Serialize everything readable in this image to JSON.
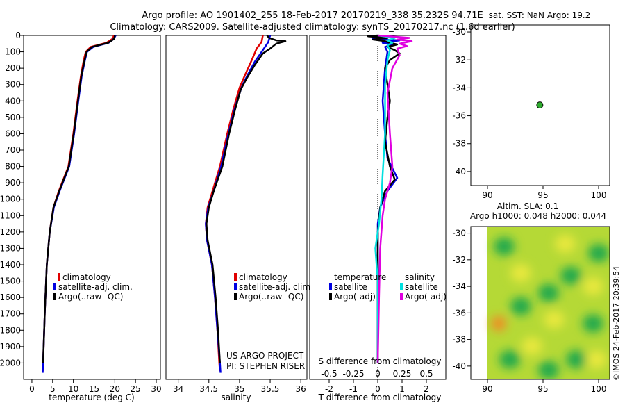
{
  "header": {
    "line1": "Argo profile: AO 1901402_255 18-Feb-2017 20170219_338 35.232S 94.71E",
    "line2": "Climatology: CARS2009. Satellite-adjusted climatology: synTS_20170217.nc (1.6d earlier)"
  },
  "colors": {
    "climatology": "#e00000",
    "satellite": "#0000e0",
    "argo": "#000000",
    "satellite_s": "#00e0e0",
    "argo_s": "#e000e0"
  },
  "chart_data": [
    {
      "id": "temperature",
      "type": "line",
      "xlabel": "temperature (deg C)",
      "xlim": [
        -2,
        31
      ],
      "ylim": [
        0,
        2100
      ],
      "xticks": [
        0,
        5,
        10,
        15,
        20,
        25,
        30
      ],
      "yticks": [
        0,
        100,
        200,
        300,
        400,
        500,
        600,
        700,
        800,
        900,
        1000,
        1100,
        1200,
        1300,
        1400,
        1500,
        1600,
        1700,
        1800,
        1900,
        2000
      ],
      "legend": [
        "climatology",
        "satellite-adj. clim.",
        "Argo(..raw -QC)"
      ],
      "series": [
        {
          "name": "climatology",
          "color_key": "climatology",
          "points": [
            [
              19.8,
              0
            ],
            [
              19.5,
              20
            ],
            [
              18.0,
              45
            ],
            [
              14.2,
              70
            ],
            [
              13.0,
              100
            ],
            [
              12.5,
              150
            ],
            [
              11.8,
              250
            ],
            [
              11.0,
              400
            ],
            [
              10.0,
              600
            ],
            [
              8.8,
              800
            ],
            [
              6.5,
              950
            ],
            [
              5.2,
              1050
            ],
            [
              4.3,
              1200
            ],
            [
              3.6,
              1400
            ],
            [
              3.1,
              1700
            ],
            [
              2.7,
              2000
            ],
            [
              2.6,
              2050
            ]
          ]
        },
        {
          "name": "satellite-adj. clim.",
          "color_key": "satellite",
          "points": [
            [
              20.2,
              0
            ],
            [
              19.8,
              20
            ],
            [
              18.5,
              45
            ],
            [
              14.8,
              70
            ],
            [
              13.3,
              100
            ],
            [
              12.8,
              150
            ],
            [
              12.0,
              250
            ],
            [
              11.2,
              400
            ],
            [
              10.2,
              600
            ],
            [
              9.0,
              800
            ],
            [
              6.7,
              950
            ],
            [
              5.3,
              1050
            ],
            [
              4.3,
              1200
            ],
            [
              3.6,
              1400
            ],
            [
              3.1,
              1700
            ],
            [
              2.7,
              2000
            ],
            [
              2.6,
              2060
            ]
          ]
        },
        {
          "name": "Argo(..raw -QC)",
          "color_key": "argo",
          "points": [
            [
              20.0,
              0
            ],
            [
              19.9,
              20
            ],
            [
              18.4,
              45
            ],
            [
              14.5,
              70
            ],
            [
              13.2,
              100
            ],
            [
              12.7,
              150
            ],
            [
              11.9,
              250
            ],
            [
              11.1,
              400
            ],
            [
              10.1,
              600
            ],
            [
              8.9,
              800
            ],
            [
              6.6,
              950
            ],
            [
              5.2,
              1050
            ],
            [
              4.3,
              1200
            ],
            [
              3.6,
              1400
            ],
            [
              3.1,
              1700
            ],
            [
              2.7,
              2000
            ]
          ]
        }
      ]
    },
    {
      "id": "salinity",
      "type": "line",
      "xlabel": "salinity",
      "xlim": [
        33.8,
        36.1
      ],
      "ylim": [
        0,
        2100
      ],
      "xticks": [
        34,
        34.5,
        35,
        35.5,
        36
      ],
      "xtick_labels": [
        "34",
        "34.5",
        "35",
        "35.5",
        "36"
      ],
      "legend": [
        "climatology",
        "satellite-adj. clim.",
        "Argo(..raw -QC)"
      ],
      "credit": [
        "US ARGO PROJECT",
        "PI: STEPHEN RISER"
      ],
      "series": [
        {
          "name": "climatology",
          "color_key": "climatology",
          "points": [
            [
              35.38,
              0
            ],
            [
              35.36,
              40
            ],
            [
              35.28,
              80
            ],
            [
              35.2,
              150
            ],
            [
              35.08,
              250
            ],
            [
              35.0,
              320
            ],
            [
              34.9,
              450
            ],
            [
              34.8,
              600
            ],
            [
              34.68,
              800
            ],
            [
              34.56,
              950
            ],
            [
              34.48,
              1050
            ],
            [
              34.45,
              1150
            ],
            [
              34.47,
              1250
            ],
            [
              34.55,
              1400
            ],
            [
              34.6,
              1600
            ],
            [
              34.64,
              1800
            ],
            [
              34.67,
              2000
            ],
            [
              34.68,
              2050
            ]
          ]
        },
        {
          "name": "satellite-adj. clim.",
          "color_key": "satellite",
          "points": [
            [
              35.5,
              0
            ],
            [
              35.47,
              40
            ],
            [
              35.38,
              90
            ],
            [
              35.25,
              160
            ],
            [
              35.12,
              250
            ],
            [
              35.03,
              320
            ],
            [
              34.92,
              450
            ],
            [
              34.82,
              600
            ],
            [
              34.7,
              800
            ],
            [
              34.58,
              950
            ],
            [
              34.49,
              1050
            ],
            [
              34.45,
              1150
            ],
            [
              34.47,
              1250
            ],
            [
              34.55,
              1400
            ],
            [
              34.6,
              1600
            ],
            [
              34.64,
              1800
            ],
            [
              34.68,
              2000
            ],
            [
              34.69,
              2060
            ]
          ]
        },
        {
          "name": "Argo(..raw -QC)",
          "color_key": "argo",
          "points": [
            [
              35.45,
              0
            ],
            [
              35.48,
              15
            ],
            [
              35.6,
              30
            ],
            [
              35.75,
              35
            ],
            [
              35.6,
              50
            ],
            [
              35.5,
              80
            ],
            [
              35.38,
              110
            ],
            [
              35.25,
              180
            ],
            [
              35.12,
              260
            ],
            [
              35.02,
              330
            ],
            [
              34.93,
              450
            ],
            [
              34.83,
              600
            ],
            [
              34.72,
              800
            ],
            [
              34.58,
              950
            ],
            [
              34.5,
              1050
            ],
            [
              34.46,
              1150
            ],
            [
              34.48,
              1250
            ],
            [
              34.56,
              1400
            ],
            [
              34.61,
              1600
            ],
            [
              34.65,
              1800
            ],
            [
              34.68,
              2000
            ]
          ]
        }
      ]
    },
    {
      "id": "difference",
      "type": "line",
      "xlabel": "T difference from climatology",
      "xlabel_top": "S difference from climatology",
      "xlim": [
        -2.8,
        2.8
      ],
      "ylim": [
        0,
        2100
      ],
      "xticks": [
        -2,
        -1,
        0,
        1,
        2
      ],
      "xtick_labels": [
        "-2",
        "-1",
        "0",
        "1",
        "2"
      ],
      "xticks_top": [
        -0.5,
        -0.25,
        0,
        0.25,
        0.5
      ],
      "xtick_top_labels": [
        "-0.5",
        "-0.25",
        "0",
        "0.25",
        "0.5"
      ],
      "legend_titles": [
        "temperature",
        "salinity"
      ],
      "legend": [
        "satellite",
        "Argo(-adj)",
        "satellite",
        "Argo(-adj)"
      ],
      "series": [
        {
          "name": "temperature satellite",
          "color_key": "satellite",
          "points": [
            [
              0.0,
              0
            ],
            [
              0.5,
              10
            ],
            [
              -0.2,
              20
            ],
            [
              0.9,
              30
            ],
            [
              0.2,
              45
            ],
            [
              0.6,
              55
            ],
            [
              0.3,
              70
            ],
            [
              0.4,
              100
            ],
            [
              0.3,
              200
            ],
            [
              0.2,
              400
            ],
            [
              0.3,
              600
            ],
            [
              0.4,
              750
            ],
            [
              0.8,
              870
            ],
            [
              0.4,
              950
            ],
            [
              0.1,
              1050
            ],
            [
              0.0,
              1150
            ],
            [
              0.0,
              1300
            ],
            [
              0.0,
              1600
            ],
            [
              0.0,
              2000
            ]
          ]
        },
        {
          "name": "temperature Argo(-adj)",
          "color_key": "argo",
          "points": [
            [
              0.0,
              0
            ],
            [
              -0.4,
              5
            ],
            [
              0.4,
              15
            ],
            [
              -0.2,
              25
            ],
            [
              0.3,
              35
            ],
            [
              0.5,
              45
            ],
            [
              0.8,
              55
            ],
            [
              0.4,
              70
            ],
            [
              0.7,
              90
            ],
            [
              0.9,
              110
            ],
            [
              0.5,
              150
            ],
            [
              0.3,
              200
            ],
            [
              0.4,
              300
            ],
            [
              0.5,
              400
            ],
            [
              0.4,
              500
            ],
            [
              0.3,
              650
            ],
            [
              0.5,
              800
            ],
            [
              0.7,
              880
            ],
            [
              0.3,
              950
            ],
            [
              0.1,
              1050
            ],
            [
              0.0,
              1200
            ],
            [
              0.0,
              1500
            ],
            [
              0.0,
              2000
            ]
          ]
        },
        {
          "name": "salinity satellite",
          "color_key": "satellite_s",
          "points": [
            [
              0.0,
              0
            ],
            [
              0.7,
              15
            ],
            [
              0.4,
              30
            ],
            [
              0.6,
              45
            ],
            [
              0.4,
              60
            ],
            [
              0.5,
              90
            ],
            [
              0.4,
              150
            ],
            [
              0.3,
              300
            ],
            [
              0.3,
              600
            ],
            [
              0.2,
              850
            ],
            [
              0.15,
              1000
            ],
            [
              0.05,
              1150
            ],
            [
              -0.1,
              1300
            ],
            [
              0.0,
              1500
            ],
            [
              0.0,
              2000
            ]
          ]
        },
        {
          "name": "salinity Argo(-adj)",
          "color_key": "argo_s",
          "points": [
            [
              0.0,
              0
            ],
            [
              1.3,
              15
            ],
            [
              0.8,
              25
            ],
            [
              1.4,
              35
            ],
            [
              0.9,
              50
            ],
            [
              1.2,
              65
            ],
            [
              0.8,
              80
            ],
            [
              0.9,
              120
            ],
            [
              0.6,
              200
            ],
            [
              0.4,
              350
            ],
            [
              0.5,
              600
            ],
            [
              0.6,
              800
            ],
            [
              0.5,
              900
            ],
            [
              0.3,
              1000
            ],
            [
              0.2,
              1100
            ],
            [
              0.1,
              1300
            ],
            [
              0.05,
              1600
            ],
            [
              0.0,
              2000
            ]
          ]
        }
      ]
    },
    {
      "id": "location",
      "type": "scatter",
      "title": "sat. SST: NaN Argo: 19.2",
      "xlim": [
        88.5,
        101
      ],
      "ylim": [
        -41,
        -29.5
      ],
      "xticks": [
        90,
        95,
        100
      ],
      "yticks": [
        -30,
        -32,
        -34,
        -36,
        -38,
        -40
      ],
      "points": [
        {
          "x": 94.71,
          "y": -35.232
        }
      ]
    },
    {
      "id": "sla-map",
      "type": "heatmap",
      "title": [
        "Altim. SLA: 0.1",
        "Argo h1000: 0.048 h2000: 0.044"
      ],
      "xlim": [
        88.5,
        101
      ],
      "ylim": [
        -41,
        -29.5
      ],
      "data_xlim": [
        90,
        101
      ],
      "xticks": [
        90,
        95,
        100
      ],
      "yticks": [
        -30,
        -32,
        -34,
        -36,
        -38,
        -40
      ],
      "blobs": [
        {
          "x": 91.5,
          "y": -31.0,
          "level": "low"
        },
        {
          "x": 93.0,
          "y": -33.0,
          "level": "high"
        },
        {
          "x": 95.5,
          "y": -34.5,
          "level": "low"
        },
        {
          "x": 97.5,
          "y": -33.2,
          "level": "low"
        },
        {
          "x": 99.5,
          "y": -34.0,
          "level": "high"
        },
        {
          "x": 91.0,
          "y": -36.8,
          "level": "peak"
        },
        {
          "x": 93.0,
          "y": -35.5,
          "level": "low"
        },
        {
          "x": 96.0,
          "y": -36.5,
          "level": "high"
        },
        {
          "x": 99.5,
          "y": -36.8,
          "level": "low"
        },
        {
          "x": 92.0,
          "y": -39.5,
          "level": "low"
        },
        {
          "x": 95.5,
          "y": -40.3,
          "level": "low"
        },
        {
          "x": 98.0,
          "y": -39.5,
          "level": "low"
        },
        {
          "x": 97.0,
          "y": -30.8,
          "level": "high"
        },
        {
          "x": 100.0,
          "y": -31.5,
          "level": "low"
        },
        {
          "x": 94.0,
          "y": -38.5,
          "level": "high"
        },
        {
          "x": 99.8,
          "y": -39.5,
          "level": "high"
        }
      ]
    }
  ],
  "watermark": "©IMOS 24-Feb-2017 20:39:54"
}
